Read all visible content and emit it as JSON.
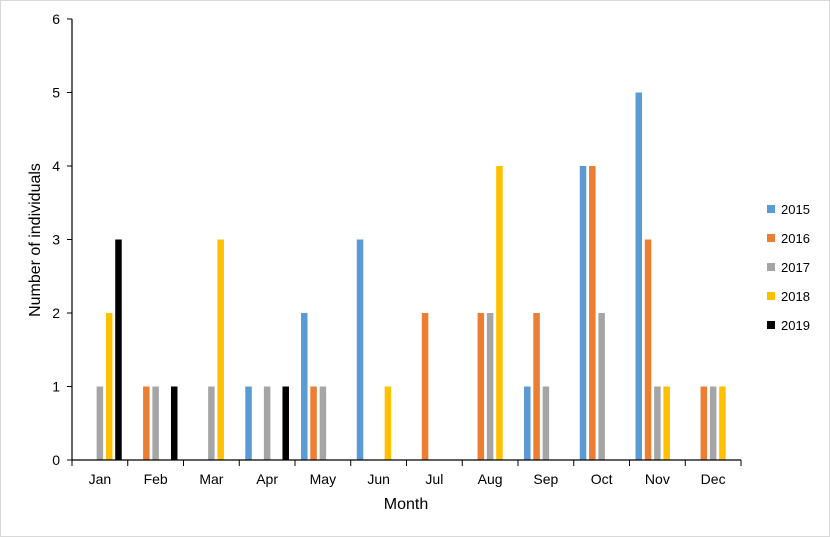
{
  "chart_data": {
    "type": "bar",
    "title": "",
    "xlabel": "Month",
    "ylabel": "Number of individuals",
    "ylim": [
      0,
      6
    ],
    "yticks": [
      "0",
      "1",
      "2",
      "3",
      "4",
      "5",
      "6"
    ],
    "grid": false,
    "legend_position": "right",
    "categories": [
      "Jan",
      "Feb",
      "Mar",
      "Apr",
      "May",
      "Jun",
      "Jul",
      "Aug",
      "Sep",
      "Oct",
      "Nov",
      "Dec"
    ],
    "series": [
      {
        "name": "2015",
        "color": "#5B9BD5",
        "values": [
          0,
          0,
          0,
          1,
          2,
          3,
          0,
          0,
          1,
          4,
          5,
          0
        ]
      },
      {
        "name": "2016",
        "color": "#ED7D31",
        "values": [
          0,
          1,
          0,
          0,
          1,
          0,
          2,
          2,
          2,
          4,
          3,
          1
        ]
      },
      {
        "name": "2017",
        "color": "#A5A5A5",
        "values": [
          1,
          1,
          1,
          1,
          1,
          0,
          0,
          2,
          1,
          2,
          1,
          1
        ]
      },
      {
        "name": "2018",
        "color": "#FFC000",
        "values": [
          2,
          0,
          3,
          0,
          0,
          1,
          0,
          4,
          0,
          0,
          1,
          1
        ]
      },
      {
        "name": "2019",
        "color": "#000000",
        "values": [
          3,
          1,
          0,
          1,
          0,
          0,
          0,
          0,
          0,
          0,
          0,
          0
        ]
      }
    ]
  }
}
